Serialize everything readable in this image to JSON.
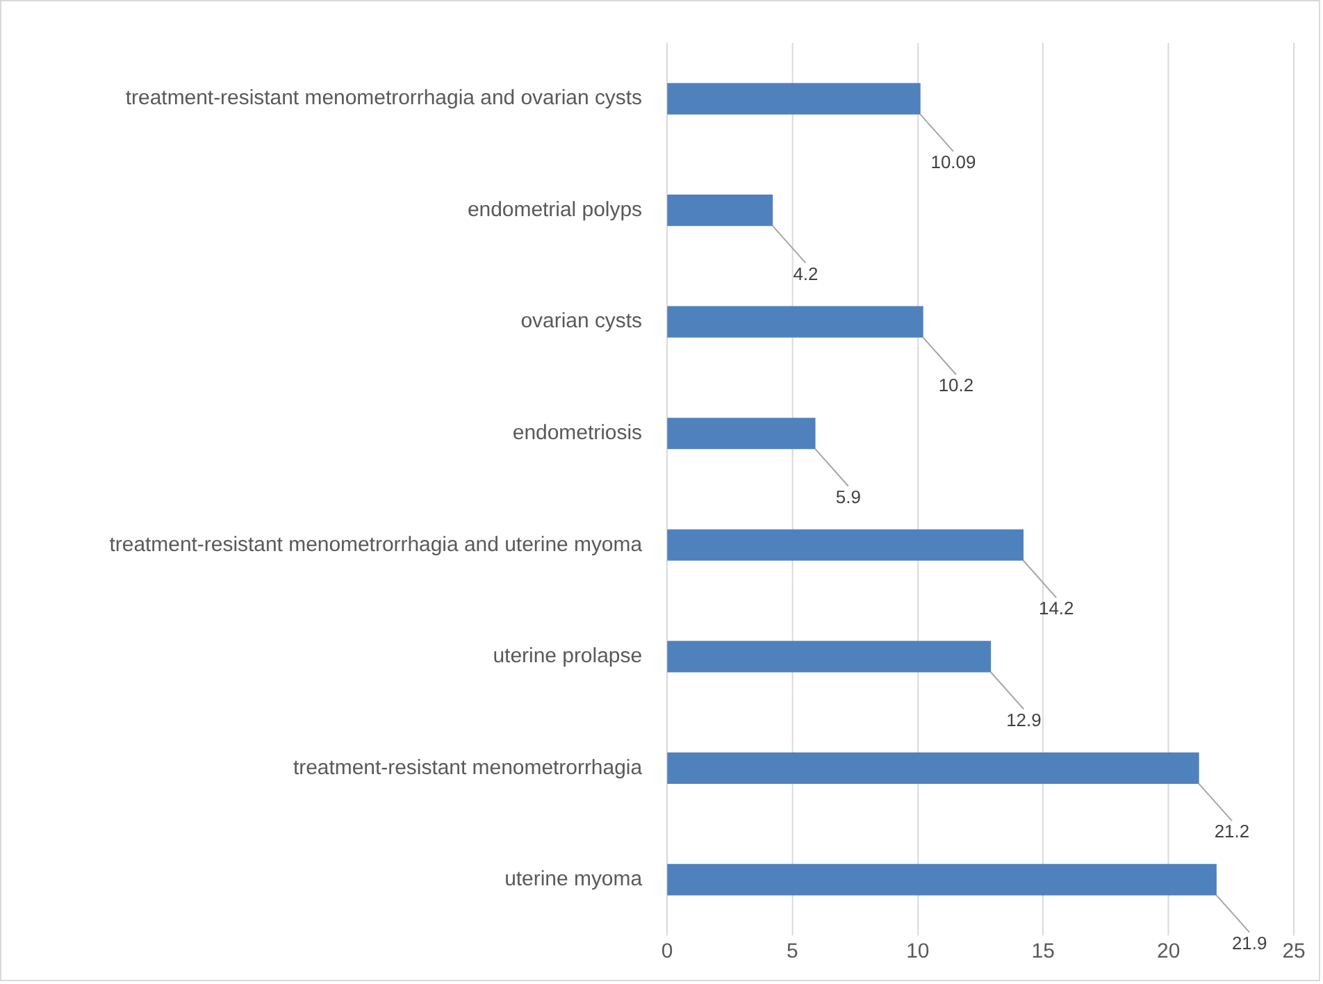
{
  "chart_data": {
    "type": "bar",
    "orientation": "horizontal",
    "categories": [
      "treatment-resistant menometrorrhagia and ovarian cysts",
      "endometrial polyps",
      "ovarian cysts",
      "endometriosis",
      "treatment-resistant menometrorrhagia and uterine myoma",
      "uterine prolapse",
      "treatment-resistant menometrorrhagia",
      "uterine myoma"
    ],
    "values": [
      10.09,
      4.2,
      10.2,
      5.9,
      14.2,
      12.9,
      21.2,
      21.9
    ],
    "color": "#4f81bd",
    "xlim": [
      0,
      25
    ],
    "xticks": [
      0,
      5,
      10,
      15,
      20,
      25
    ],
    "grid": "x",
    "data_labels": true,
    "legend": false
  }
}
